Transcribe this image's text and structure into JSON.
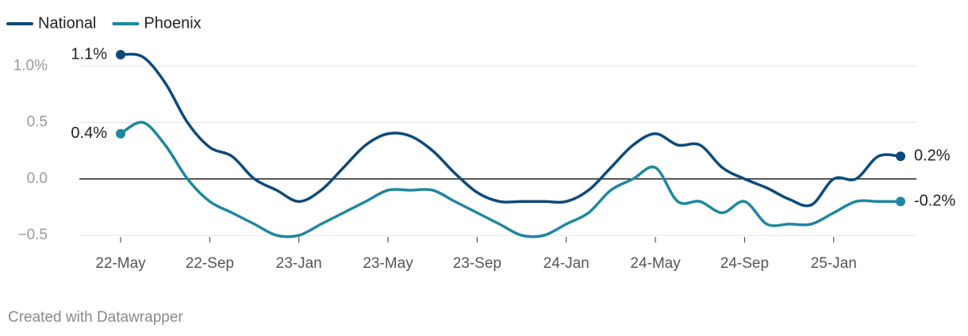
{
  "chart_data": {
    "type": "line",
    "categories": [
      "22-May",
      null,
      null,
      null,
      "22-Sep",
      null,
      null,
      null,
      "23-Jan",
      null,
      null,
      null,
      "23-May",
      null,
      null,
      null,
      "23-Sep",
      null,
      null,
      null,
      "24-Jan",
      null,
      null,
      null,
      "24-May",
      null,
      null,
      null,
      "24-Sep",
      null,
      null,
      null,
      "25-Jan",
      null,
      null,
      null
    ],
    "series": [
      {
        "name": "National",
        "color": "#0d4a7a",
        "values": [
          1.1,
          1.08,
          0.85,
          0.5,
          0.28,
          0.2,
          0.0,
          -0.1,
          -0.2,
          -0.1,
          0.1,
          0.3,
          0.4,
          0.38,
          0.25,
          0.05,
          -0.12,
          -0.2,
          -0.2,
          -0.2,
          -0.2,
          -0.1,
          0.1,
          0.3,
          0.4,
          0.3,
          0.3,
          0.1,
          0.0,
          -0.08,
          -0.18,
          -0.23,
          0.0,
          0.0,
          0.2,
          0.2
        ],
        "value_labels": [
          "1.1%",
          null,
          null,
          null,
          null,
          null,
          null,
          null,
          null,
          null,
          null,
          null,
          null,
          null,
          null,
          null,
          null,
          null,
          null,
          null,
          null,
          null,
          null,
          null,
          null,
          null,
          null,
          null,
          null,
          null,
          null,
          null,
          null,
          null,
          null,
          "0.2%"
        ]
      },
      {
        "name": "Phoenix",
        "color": "#1f87a0",
        "values": [
          0.4,
          0.5,
          0.3,
          0.0,
          -0.2,
          -0.3,
          -0.4,
          -0.5,
          -0.5,
          -0.4,
          -0.3,
          -0.2,
          -0.1,
          -0.1,
          -0.1,
          -0.2,
          -0.3,
          -0.4,
          -0.5,
          -0.5,
          -0.4,
          -0.3,
          -0.1,
          0.0,
          0.1,
          -0.2,
          -0.2,
          -0.3,
          -0.2,
          -0.4,
          -0.4,
          -0.4,
          -0.3,
          -0.2,
          -0.2,
          -0.2
        ],
        "value_labels": [
          "0.4%",
          null,
          null,
          null,
          null,
          null,
          null,
          null,
          null,
          null,
          null,
          null,
          null,
          null,
          null,
          null,
          null,
          null,
          null,
          null,
          null,
          null,
          null,
          null,
          null,
          null,
          null,
          null,
          null,
          null,
          null,
          null,
          null,
          null,
          null,
          "-0.2%"
        ]
      }
    ],
    "ylim": [
      -0.5,
      1.1
    ],
    "yticks": [
      {
        "value": 1,
        "label": "1.0%"
      },
      {
        "value": 0.5,
        "label": "0.5"
      },
      {
        "value": 0,
        "label": "0.0"
      },
      {
        "value": -0.5,
        "label": "−0.5"
      }
    ],
    "grid": true,
    "legend": "top-left",
    "credit": "Created with Datawrapper"
  }
}
